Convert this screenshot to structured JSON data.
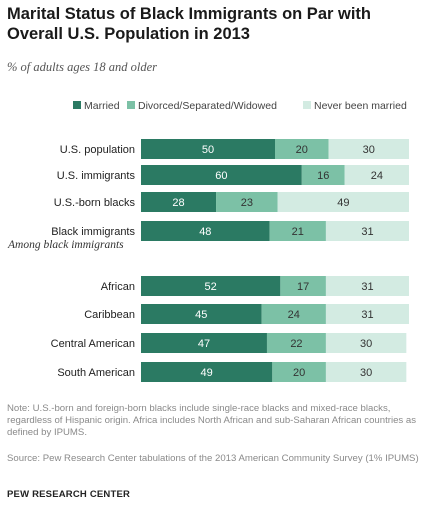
{
  "header": {
    "title": "Marital Status of Black Immigrants on Par with Overall U.S. Population in 2013",
    "subtitle": "% of adults ages 18 and older"
  },
  "chart_data": {
    "type": "bar",
    "orientation": "horizontal",
    "stacked": true,
    "xlim": [
      0,
      100
    ],
    "legend_position": "top",
    "section_label": "Among black immigrants",
    "categories": [
      "U.S. population",
      "U.S. immigrants",
      "U.S.-born blacks",
      "Black immigrants",
      "African",
      "Caribbean",
      "Central American",
      "South American"
    ],
    "series": [
      {
        "name": "Married",
        "color": "#2b7a63",
        "label_color": "#ffffff",
        "values": [
          50,
          60,
          28,
          48,
          52,
          45,
          47,
          49
        ]
      },
      {
        "name": "Divorced/Separated/Widowed",
        "color": "#7cc1a6",
        "label_color": "#333333",
        "values": [
          20,
          16,
          23,
          21,
          17,
          24,
          22,
          20
        ]
      },
      {
        "name": "Never been married",
        "color": "#d3ebe2",
        "label_color": "#333333",
        "values": [
          30,
          24,
          49,
          31,
          31,
          31,
          30,
          30
        ]
      }
    ]
  },
  "notes": {
    "note": "Note: U.S.-born and foreign-born blacks include single-race blacks and mixed-race blacks, regardless of Hispanic origin. Africa includes North African and sub-Saharan African countries as defined by IPUMS.",
    "source": "Source: Pew Research Center tabulations of the 2013 American Community Survey (1% IPUMS)",
    "logo": "PEW RESEARCH CENTER"
  }
}
